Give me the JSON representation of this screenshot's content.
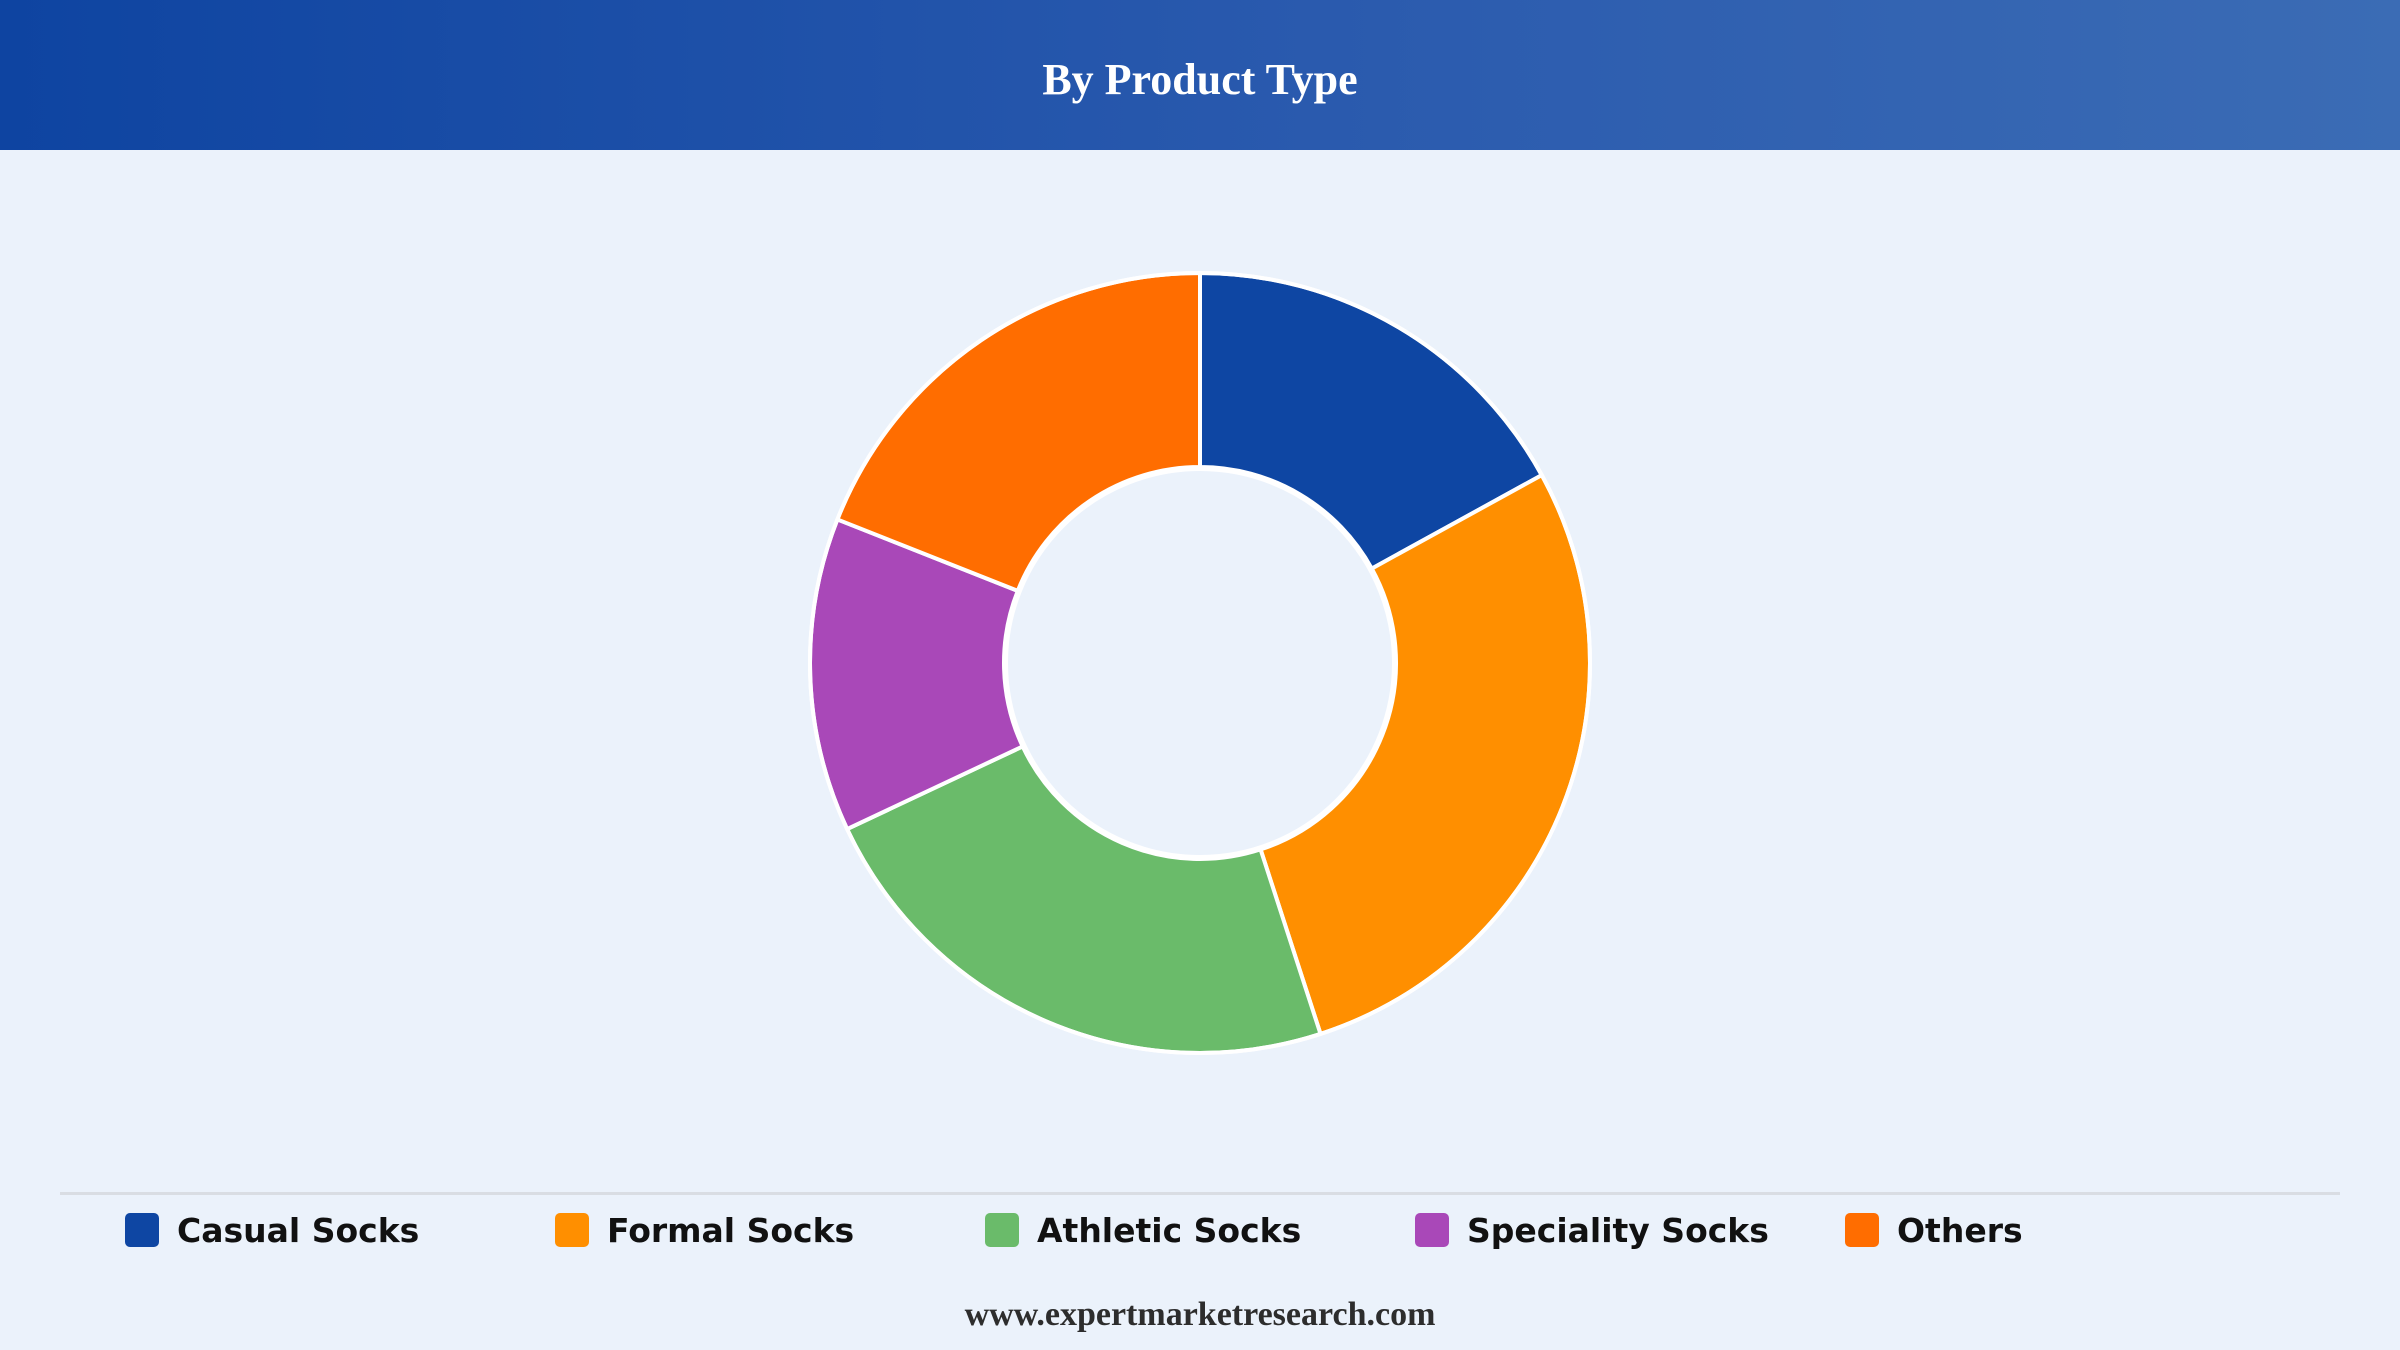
{
  "header": {
    "title": "By Product Type"
  },
  "chart_data": {
    "type": "pie",
    "variant": "donut",
    "title": "By Product Type",
    "categories": [
      "Casual Socks",
      "Formal Socks",
      "Athletic Socks",
      "Speciality Socks",
      "Others"
    ],
    "values": [
      17,
      28,
      23,
      13,
      19
    ],
    "unit": "%",
    "colors": [
      "#0e46a3",
      "#ff8f00",
      "#6abb6a",
      "#a948b8",
      "#ff6d00"
    ],
    "start_angle_deg": 0,
    "direction": "clockwise",
    "legend_position": "bottom"
  },
  "legend": {
    "items": [
      {
        "label": "Casual Socks",
        "color": "#0e46a3"
      },
      {
        "label": "Formal Socks",
        "color": "#ff8f00"
      },
      {
        "label": "Athletic Socks",
        "color": "#6abb6a"
      },
      {
        "label": "Speciality Socks",
        "color": "#a948b8"
      },
      {
        "label": "Others",
        "color": "#ff6d00"
      }
    ]
  },
  "footer": {
    "source": "www.expertmarketresearch.com"
  }
}
